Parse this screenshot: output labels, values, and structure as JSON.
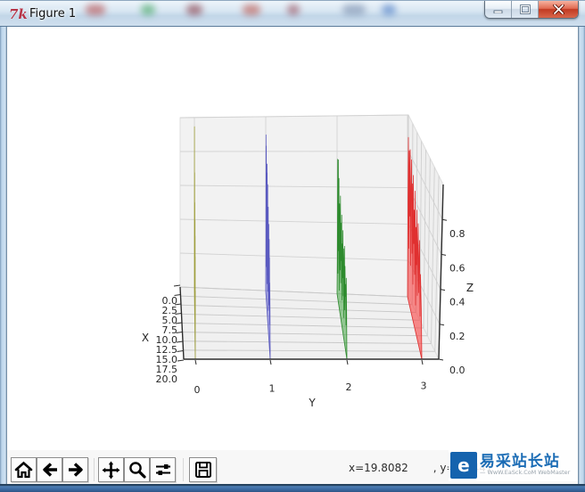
{
  "window": {
    "title": "Figure 1",
    "icon": "tk-logo",
    "icon_glyph": "7k",
    "controls": [
      "minimize",
      "maximize",
      "close"
    ]
  },
  "toolbar": {
    "buttons": [
      "home",
      "back",
      "forward",
      "pan",
      "zoom",
      "configure-subplots",
      "save"
    ],
    "coords_x": "x=19.8082",
    "coords_y": ", y=1.0447"
  },
  "watermark": {
    "logo_glyph": "e",
    "title": "易采站长站",
    "subtitle": "— WwW.EaSck.CoM WebMaster",
    "accent": "#1563ae"
  },
  "chart_data": {
    "type": "area",
    "note": "matplotlib 3D PolyCollection waterfall: 4 filled random-spike polygons drawn at y=0,1,2,3, viewed nearly edge-on along the X axis",
    "title": "",
    "xlabel": "X",
    "ylabel": "Y",
    "zlabel": "Z",
    "xlim": [
      0,
      20
    ],
    "ylim": [
      0,
      3
    ],
    "zlim": [
      0,
      1
    ],
    "xticklabels": [
      "0.0",
      "2.5",
      "5.0",
      "7.5",
      "10.0",
      "12.5",
      "15.0",
      "17.5",
      "20.0"
    ],
    "yticklabels": [
      "0",
      "1",
      "2",
      "3"
    ],
    "zticklabels": [
      "0.0",
      "0.2",
      "0.4",
      "0.6",
      "0.8"
    ],
    "grid": true,
    "pane_color": "#f2f2f2",
    "grid_color": "#d2d2d2",
    "x_step": 0.625,
    "series": [
      {
        "name": "polygon y=0",
        "y": 0,
        "face": "rgba(205,205,75,0.5)",
        "edge": "#9e9e3c",
        "z": [
          0,
          0.45,
          0.97,
          0.25,
          0.6,
          0.15,
          0.75,
          0.35,
          0.55,
          0.2,
          0.8,
          0.4,
          0.65,
          0.1,
          0.5,
          0.3,
          0.7,
          0.22,
          0.58,
          0.12,
          0.42,
          0.66,
          0.28,
          0.52,
          0.18,
          0.62,
          0.33,
          0.47,
          0.15,
          0.55,
          0.26,
          0.38,
          0
        ]
      },
      {
        "name": "polygon y=1",
        "y": 1,
        "face": "rgba(95,95,215,0.5)",
        "edge": "#5a5ac0",
        "z": [
          0,
          0.3,
          0.92,
          0.4,
          0.88,
          0.2,
          0.75,
          0.5,
          0.63,
          0.15,
          0.85,
          0.35,
          0.6,
          0.25,
          0.78,
          0.18,
          0.55,
          0.4,
          0.7,
          0.12,
          0.5,
          0.3,
          0.65,
          0.2,
          0.45,
          0.6,
          0.25,
          0.52,
          0.15,
          0.4,
          0.3,
          0.2,
          0
        ]
      },
      {
        "name": "polygon y=2",
        "y": 2,
        "face": "rgba(70,165,70,0.55)",
        "edge": "#2e8b2e",
        "z": [
          0,
          0.2,
          0.78,
          0.15,
          0.8,
          0.3,
          0.72,
          0.1,
          0.6,
          0.45,
          0.25,
          0.68,
          0.2,
          0.55,
          0.35,
          0.62,
          0.15,
          0.48,
          0.3,
          0.58,
          0.22,
          0.5,
          0.12,
          0.42,
          0.55,
          0.2,
          0.46,
          0.3,
          0.38,
          0.16,
          0.44,
          0.24,
          0
        ]
      },
      {
        "name": "polygon y=3",
        "y": 3,
        "face": "rgba(250,65,65,0.6)",
        "edge": "#e03030",
        "z": [
          0,
          0.55,
          0.9,
          0.3,
          0.85,
          0.5,
          0.88,
          0.25,
          0.7,
          0.86,
          0.35,
          0.75,
          0.2,
          0.82,
          0.45,
          0.65,
          0.3,
          0.78,
          0.15,
          0.6,
          0.4,
          0.72,
          0.25,
          0.55,
          0.68,
          0.3,
          0.5,
          0.62,
          0.2,
          0.45,
          0.35,
          0.25,
          0
        ]
      }
    ]
  }
}
